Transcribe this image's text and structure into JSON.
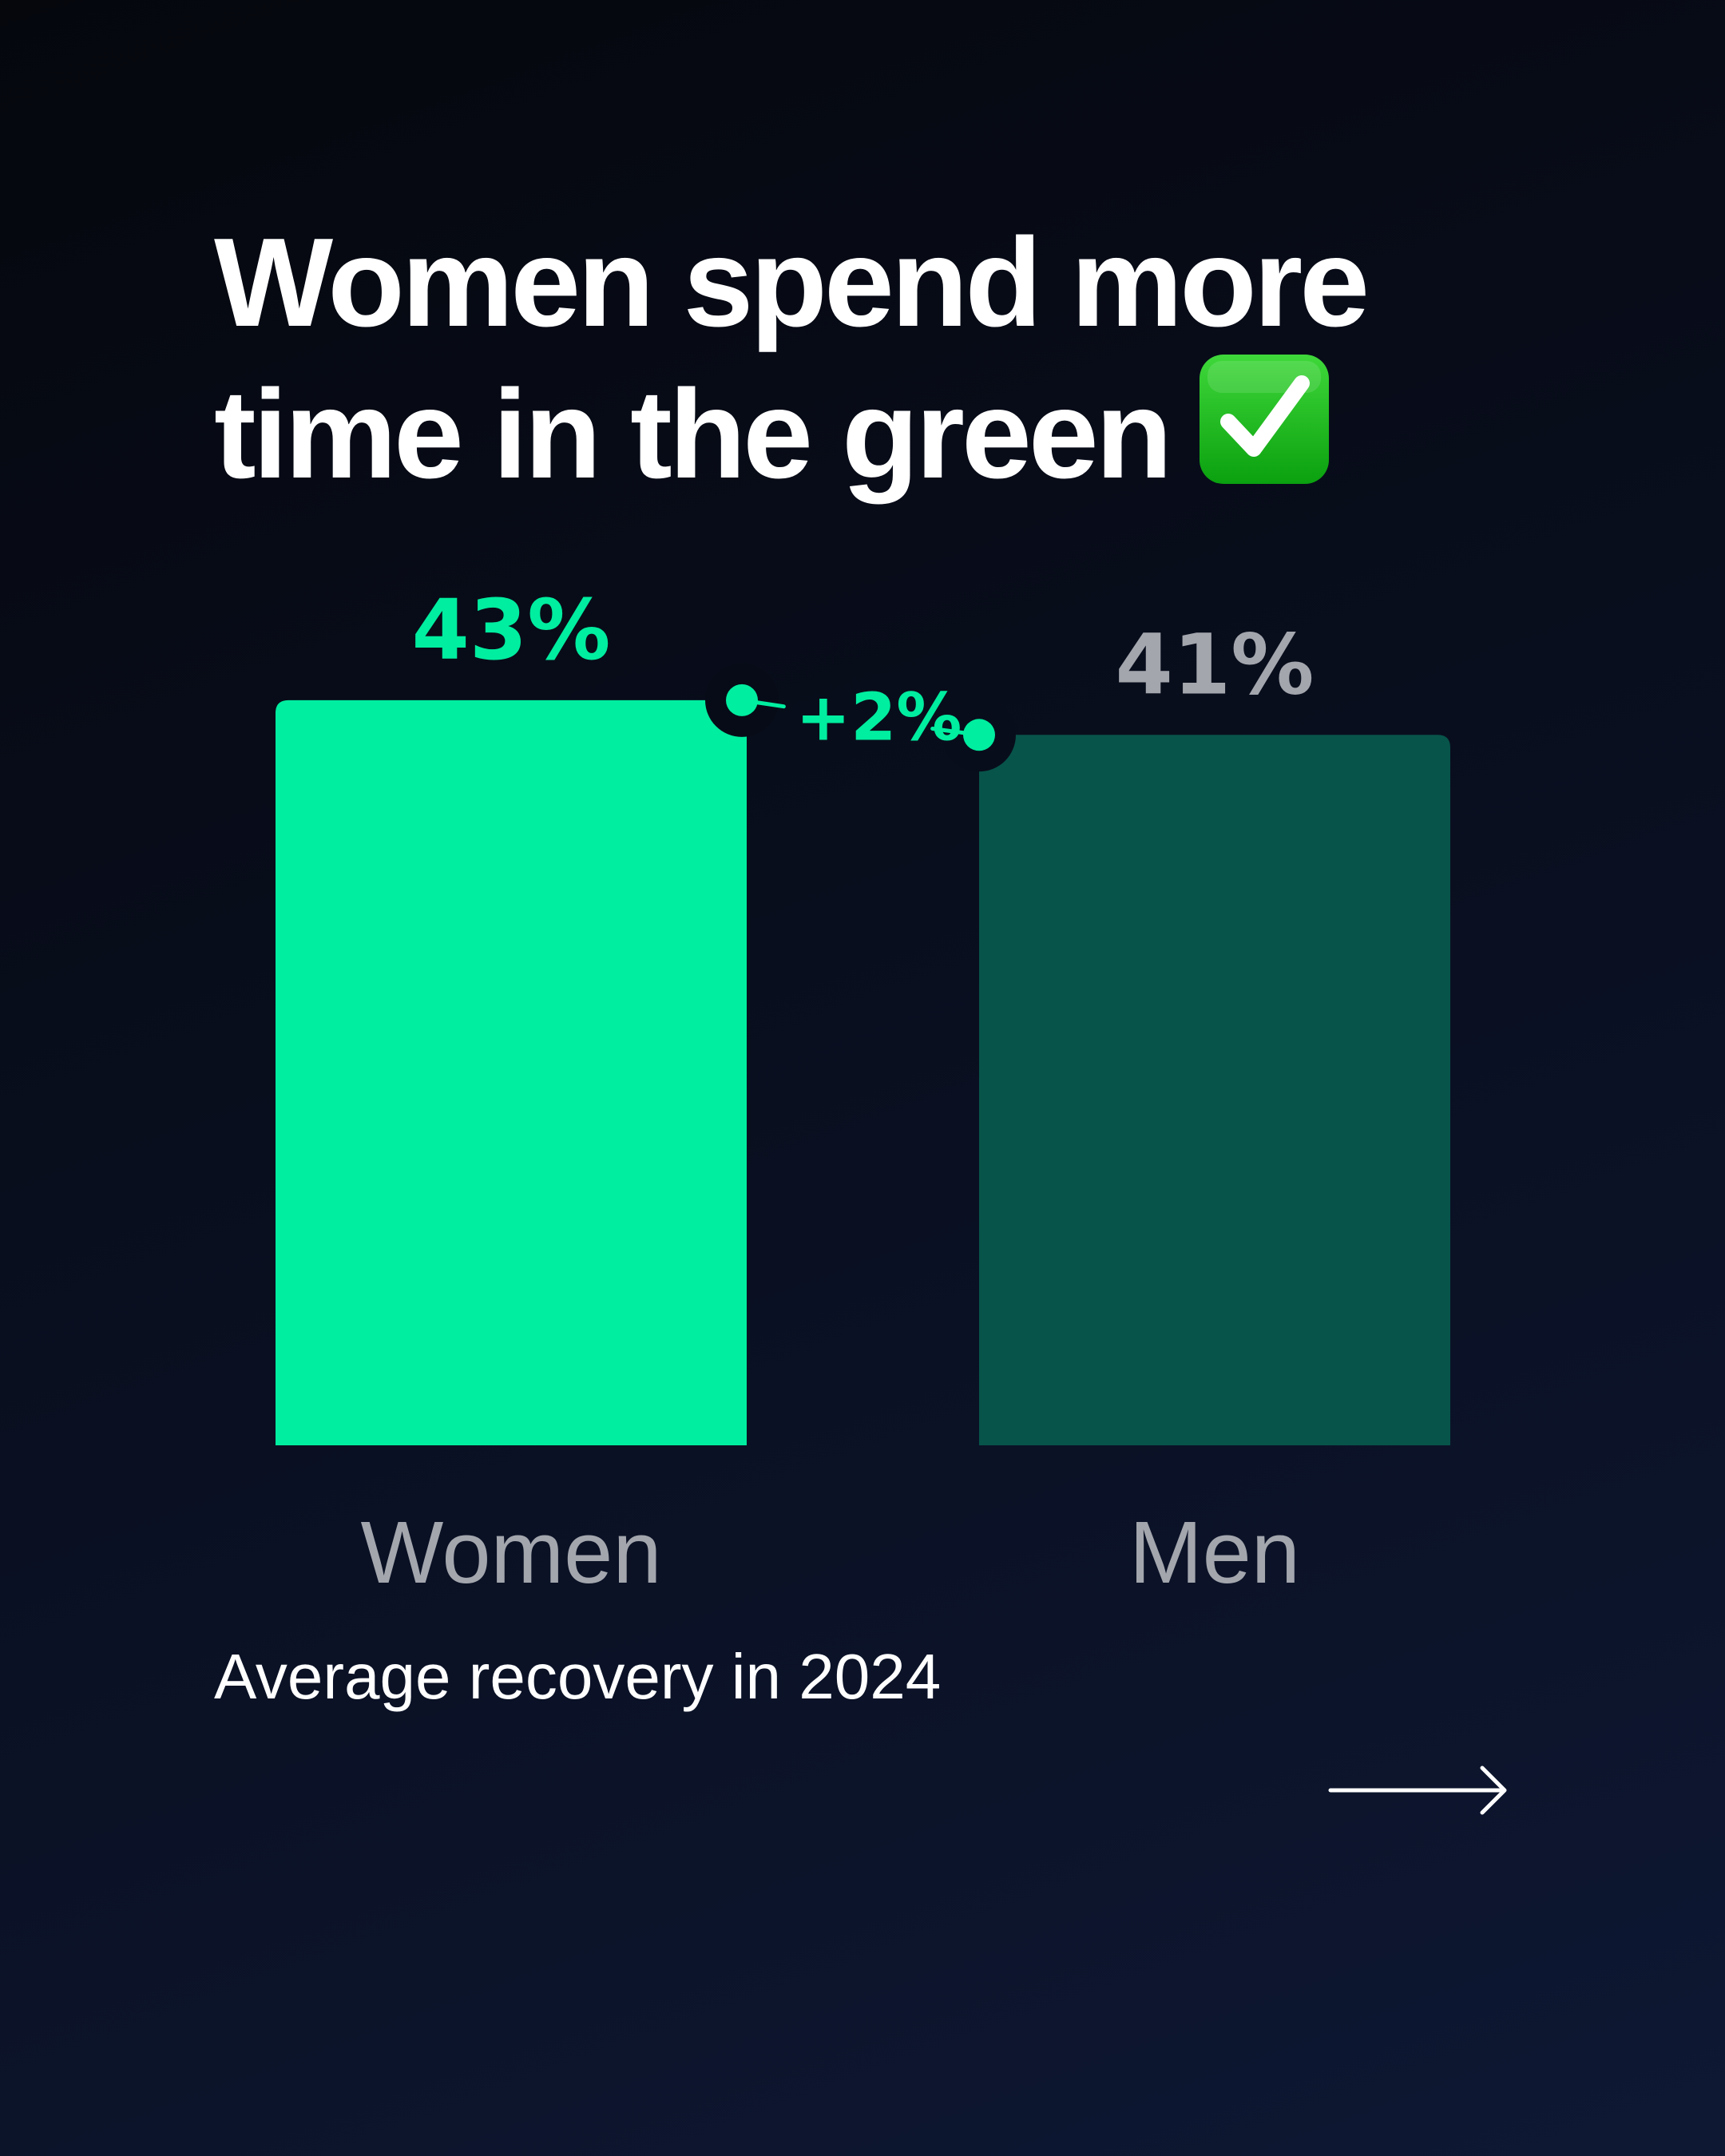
{
  "headline": {
    "line1": "Women spend more",
    "line2": "time in the green"
  },
  "caption": "Average recovery in 2024",
  "icons": {
    "headline_icon": "check-mark-button-icon",
    "next_icon": "arrow-right-icon"
  },
  "colors": {
    "background": "#070b17",
    "women_bar": "#00ee9f",
    "men_bar": "#07544a",
    "accent": "#00ee9f",
    "men_label": "#a3a6ad",
    "text": "#ffffff"
  },
  "chart_data": {
    "type": "bar",
    "title": "",
    "xlabel": "",
    "ylabel": "",
    "unit": "%",
    "categories": [
      "Women",
      "Men"
    ],
    "values": [
      43,
      41
    ],
    "value_labels": [
      "43%",
      "41%"
    ],
    "difference_label": "+2%",
    "ylim": [
      0,
      43
    ],
    "grid": false,
    "legend": "none"
  }
}
